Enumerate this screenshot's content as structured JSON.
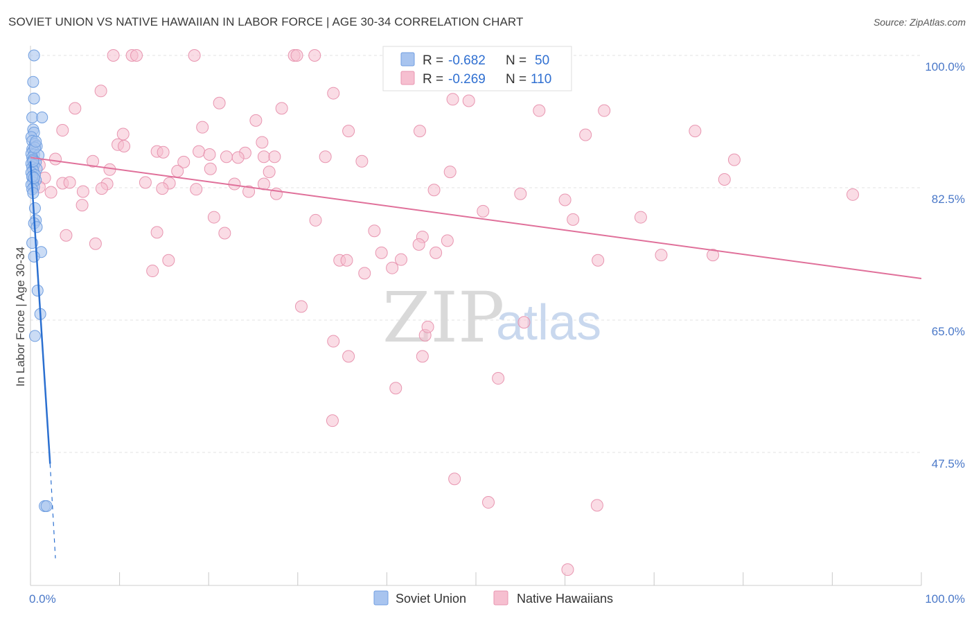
{
  "title": "SOVIET UNION VS NATIVE HAWAIIAN IN LABOR FORCE | AGE 30-34 CORRELATION CHART",
  "source": "Source: ZipAtlas.com",
  "watermark": {
    "zip": "ZIP",
    "atlas": "atlas"
  },
  "colors": {
    "blue_fill": "#a8c4ef",
    "blue_stroke": "#6f9ee0",
    "blue_line": "#2a6fd0",
    "pink_fill": "#f6bfd0",
    "pink_stroke": "#e895b0",
    "pink_line": "#e0709a",
    "grid": "#e3e3e3",
    "axis_text": "#4a78c8"
  },
  "legend": {
    "rows": [
      {
        "series": "Soviet Union",
        "r_label": "R =",
        "r_value": "-0.682",
        "n_label": "N =",
        "n_value": "50"
      },
      {
        "series": "Native Hawaiians",
        "r_label": "R =",
        "r_value": "-0.269",
        "n_label": "N =",
        "n_value": "110"
      }
    ]
  },
  "bottom_legend": [
    "Soviet Union",
    "Native Hawaiians"
  ],
  "chart_data": {
    "type": "scatter",
    "title": "SOVIET UNION VS NATIVE HAWAIIAN IN LABOR FORCE | AGE 30-34 CORRELATION CHART",
    "xlabel": "",
    "ylabel": "In Labor Force | Age 30-34",
    "xlim": [
      0,
      100
    ],
    "ylim": [
      32,
      100
    ],
    "x_tick_labels": [
      "0.0%",
      "100.0%"
    ],
    "y_ticks": [
      47.5,
      65.0,
      82.5,
      100.0
    ],
    "y_tick_labels": [
      "47.5%",
      "65.0%",
      "82.5%",
      "100.0%"
    ],
    "grid": true,
    "series": [
      {
        "name": "Soviet Union",
        "R": -0.682,
        "N": 50,
        "trend": {
          "x": [
            0.0,
            2.2
          ],
          "y": [
            86.0,
            46.0
          ],
          "dashed_to": [
            2.8,
            33.5
          ]
        },
        "points": [
          [
            0.4,
            100.0
          ],
          [
            0.3,
            96.5
          ],
          [
            0.4,
            94.3
          ],
          [
            0.2,
            91.8
          ],
          [
            1.3,
            91.8
          ],
          [
            0.3,
            90.2
          ],
          [
            0.4,
            89.8
          ],
          [
            0.1,
            89.2
          ],
          [
            0.2,
            88.7
          ],
          [
            0.5,
            88.3
          ],
          [
            0.7,
            88.0
          ],
          [
            0.2,
            87.6
          ],
          [
            0.3,
            87.4
          ],
          [
            0.1,
            87.0
          ],
          [
            0.4,
            86.9
          ],
          [
            0.9,
            86.8
          ],
          [
            0.2,
            86.5
          ],
          [
            0.3,
            86.2
          ],
          [
            0.6,
            85.9
          ],
          [
            0.1,
            85.7
          ],
          [
            0.4,
            85.5
          ],
          [
            0.2,
            85.2
          ],
          [
            0.7,
            85.0
          ],
          [
            0.3,
            84.8
          ],
          [
            0.1,
            84.5
          ],
          [
            0.5,
            84.2
          ],
          [
            0.2,
            83.9
          ],
          [
            0.6,
            83.5
          ],
          [
            0.3,
            83.2
          ],
          [
            0.1,
            82.9
          ],
          [
            0.4,
            82.6
          ],
          [
            0.2,
            82.3
          ],
          [
            0.3,
            81.8
          ],
          [
            0.5,
            79.8
          ],
          [
            0.6,
            78.2
          ],
          [
            0.4,
            77.8
          ],
          [
            0.7,
            77.3
          ],
          [
            0.2,
            75.2
          ],
          [
            1.2,
            74.0
          ],
          [
            0.4,
            73.4
          ],
          [
            0.8,
            68.9
          ],
          [
            1.1,
            65.8
          ],
          [
            0.5,
            62.9
          ],
          [
            1.6,
            40.4
          ],
          [
            1.8,
            40.4
          ],
          [
            0.3,
            86.0
          ],
          [
            0.5,
            87.8
          ],
          [
            0.2,
            84.0
          ],
          [
            0.6,
            88.6
          ],
          [
            0.4,
            83.8
          ]
        ]
      },
      {
        "name": "Native Hawaiians",
        "R": -0.269,
        "N": 110,
        "trend": {
          "x": [
            0.0,
            100.0
          ],
          "y": [
            86.5,
            70.5
          ]
        },
        "points": [
          [
            9.3,
            100.0
          ],
          [
            11.4,
            100.0
          ],
          [
            11.9,
            100.0
          ],
          [
            18.4,
            100.0
          ],
          [
            29.6,
            100.0
          ],
          [
            29.9,
            100.0
          ],
          [
            31.9,
            100.0
          ],
          [
            60.0,
            100.0
          ],
          [
            7.9,
            95.3
          ],
          [
            34.0,
            95.0
          ],
          [
            47.4,
            94.2
          ],
          [
            49.2,
            94.0
          ],
          [
            21.2,
            93.7
          ],
          [
            5.0,
            93.0
          ],
          [
            28.2,
            93.0
          ],
          [
            57.1,
            92.7
          ],
          [
            64.4,
            92.7
          ],
          [
            25.3,
            91.4
          ],
          [
            19.3,
            90.5
          ],
          [
            3.6,
            90.1
          ],
          [
            35.7,
            90.0
          ],
          [
            43.7,
            90.0
          ],
          [
            74.6,
            90.0
          ],
          [
            10.4,
            89.6
          ],
          [
            62.3,
            89.5
          ],
          [
            26.0,
            88.5
          ],
          [
            9.8,
            88.2
          ],
          [
            10.5,
            88.0
          ],
          [
            14.2,
            87.3
          ],
          [
            14.9,
            87.2
          ],
          [
            18.9,
            87.3
          ],
          [
            24.1,
            87.1
          ],
          [
            20.1,
            86.9
          ],
          [
            22.0,
            86.6
          ],
          [
            23.3,
            86.5
          ],
          [
            26.2,
            86.6
          ],
          [
            27.4,
            86.6
          ],
          [
            33.1,
            86.6
          ],
          [
            2.8,
            86.3
          ],
          [
            79.0,
            86.2
          ],
          [
            7.0,
            86.0
          ],
          [
            17.2,
            85.9
          ],
          [
            37.2,
            86.0
          ],
          [
            8.9,
            84.9
          ],
          [
            16.5,
            84.7
          ],
          [
            26.8,
            84.6
          ],
          [
            20.2,
            85.0
          ],
          [
            47.1,
            84.6
          ],
          [
            1.0,
            85.5
          ],
          [
            1.6,
            83.8
          ],
          [
            3.6,
            83.1
          ],
          [
            4.4,
            83.2
          ],
          [
            8.6,
            83.0
          ],
          [
            12.9,
            83.2
          ],
          [
            15.6,
            83.1
          ],
          [
            22.9,
            83.0
          ],
          [
            26.2,
            83.0
          ],
          [
            77.9,
            83.6
          ],
          [
            1.0,
            82.6
          ],
          [
            2.3,
            81.9
          ],
          [
            5.9,
            82.0
          ],
          [
            8.0,
            82.4
          ],
          [
            14.8,
            82.4
          ],
          [
            18.6,
            82.3
          ],
          [
            24.5,
            82.0
          ],
          [
            27.6,
            81.7
          ],
          [
            45.3,
            82.2
          ],
          [
            55.0,
            81.7
          ],
          [
            60.0,
            80.9
          ],
          [
            92.3,
            81.6
          ],
          [
            5.8,
            80.2
          ],
          [
            20.6,
            78.6
          ],
          [
            32.0,
            78.2
          ],
          [
            50.8,
            79.4
          ],
          [
            60.9,
            78.3
          ],
          [
            68.5,
            78.6
          ],
          [
            4.0,
            76.2
          ],
          [
            14.2,
            76.6
          ],
          [
            21.8,
            76.5
          ],
          [
            38.6,
            76.8
          ],
          [
            44.0,
            76.0
          ],
          [
            46.8,
            75.5
          ],
          [
            7.3,
            75.1
          ],
          [
            43.6,
            75.0
          ],
          [
            45.5,
            73.9
          ],
          [
            34.7,
            72.9
          ],
          [
            35.5,
            72.9
          ],
          [
            39.4,
            73.9
          ],
          [
            41.6,
            73.0
          ],
          [
            15.5,
            72.9
          ],
          [
            63.7,
            72.9
          ],
          [
            70.8,
            73.6
          ],
          [
            76.6,
            73.6
          ],
          [
            13.7,
            71.5
          ],
          [
            37.5,
            71.2
          ],
          [
            40.6,
            71.9
          ],
          [
            30.4,
            66.8
          ],
          [
            34.0,
            62.2
          ],
          [
            44.3,
            63.0
          ],
          [
            44.6,
            64.1
          ],
          [
            35.7,
            60.2
          ],
          [
            44.0,
            60.2
          ],
          [
            52.5,
            57.3
          ],
          [
            33.9,
            51.7
          ],
          [
            47.6,
            44.0
          ],
          [
            51.4,
            40.9
          ],
          [
            60.3,
            32.0
          ],
          [
            63.6,
            40.5
          ],
          [
            41.0,
            56.0
          ],
          [
            55.4,
            64.7
          ]
        ]
      }
    ]
  }
}
